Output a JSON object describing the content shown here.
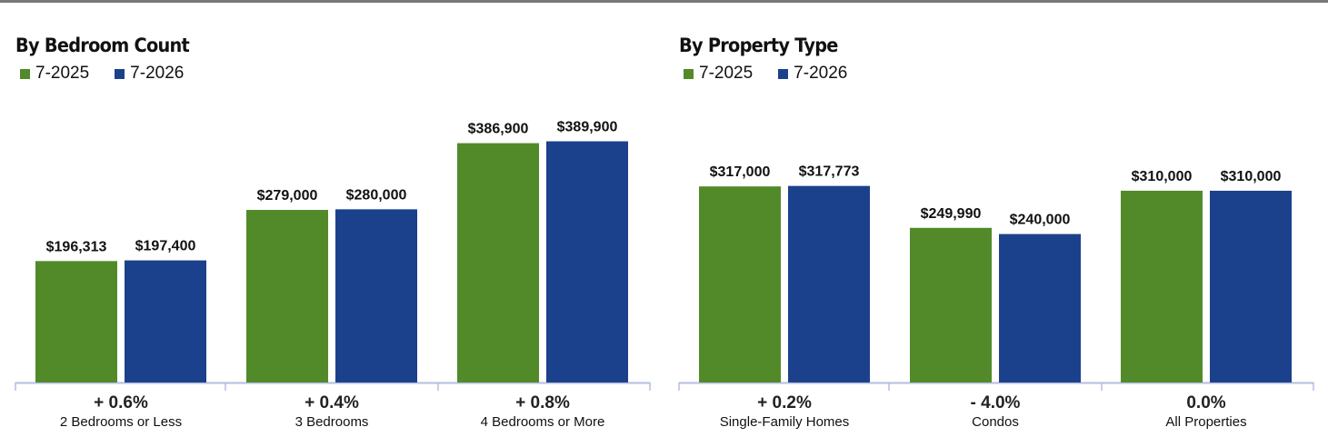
{
  "colors": {
    "series_2025": "#528a2a",
    "series_2026": "#1c418c",
    "axis": "#b5bedf"
  },
  "chart_data": [
    {
      "type": "bar",
      "title": "By Bedroom Count",
      "legend": "top-left",
      "ylim": [
        0,
        470000
      ],
      "series": [
        {
          "name": "7-2025",
          "values": [
            196313,
            279000,
            386900
          ]
        },
        {
          "name": "7-2026",
          "values": [
            197400,
            280000,
            389900
          ]
        }
      ],
      "data_labels": [
        [
          "$196,313",
          "$279,000",
          "$386,900"
        ],
        [
          "$197,400",
          "$280,000",
          "$389,900"
        ]
      ],
      "categories": [
        "2 Bedrooms or Less",
        "3 Bedrooms",
        "4 Bedrooms or More"
      ],
      "changes": [
        "+ 0.6%",
        "+ 0.4%",
        "+ 0.8%"
      ]
    },
    {
      "type": "bar",
      "title": "By Property Type",
      "legend": "top-left",
      "ylim": [
        0,
        470000
      ],
      "series": [
        {
          "name": "7-2025",
          "values": [
            317000,
            249990,
            310000
          ]
        },
        {
          "name": "7-2026",
          "values": [
            317773,
            240000,
            310000
          ]
        }
      ],
      "data_labels": [
        [
          "$317,000",
          "$249,990",
          "$310,000"
        ],
        [
          "$317,773",
          "$240,000",
          "$310,000"
        ]
      ],
      "categories": [
        "Single-Family Homes",
        "Condos",
        "All Properties"
      ],
      "changes": [
        "+ 0.2%",
        "- 4.0%",
        "0.0%"
      ]
    }
  ]
}
